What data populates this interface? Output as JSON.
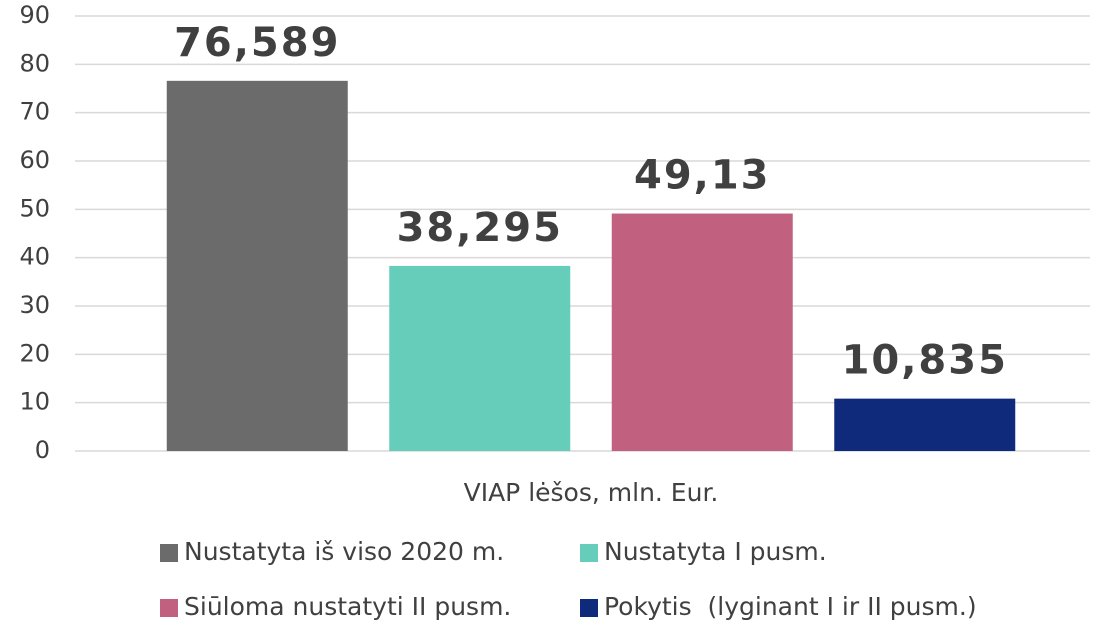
{
  "chart_data": {
    "type": "bar",
    "categories": [
      "VIAP lėšos, mln. Eur."
    ],
    "series": [
      {
        "name": "Nustatyta iš viso 2020 m.",
        "color": "#6b6b6b",
        "values": [
          76.589
        ],
        "value_labels": [
          "76,589"
        ]
      },
      {
        "name": "Nustatyta I pusm.",
        "color": "#66cdbb",
        "values": [
          38.295
        ],
        "value_labels": [
          "38,295"
        ]
      },
      {
        "name": "Siūloma nustatyti II pusm.",
        "color": "#c2607f",
        "values": [
          49.13
        ],
        "value_labels": [
          "49,13"
        ]
      },
      {
        "name": "Pokytis  (lyginant I ir II pusm.)",
        "color": "#0f2a7a",
        "values": [
          10.835
        ],
        "value_labels": [
          "10,835"
        ]
      }
    ],
    "ylim": [
      0,
      90
    ],
    "yticks": [
      0,
      10,
      20,
      30,
      40,
      50,
      60,
      70,
      80,
      90
    ],
    "grid": true
  }
}
